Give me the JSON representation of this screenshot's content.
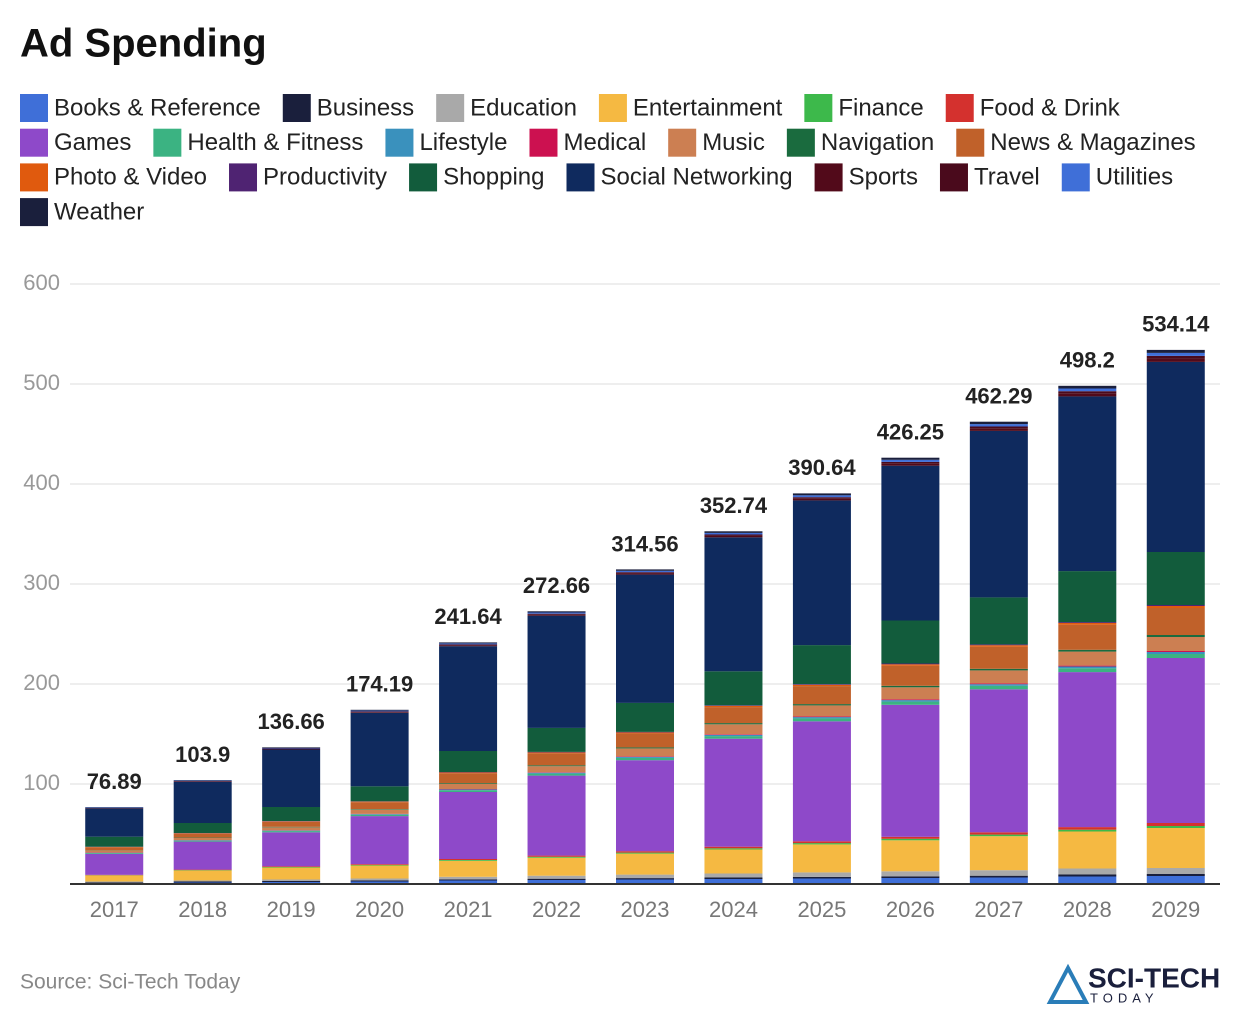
{
  "chart_data": {
    "type": "stacked_bar",
    "title": "Ad Spending",
    "categories": [
      "2017",
      "2018",
      "2019",
      "2020",
      "2021",
      "2022",
      "2023",
      "2024",
      "2025",
      "2026",
      "2027",
      "2028",
      "2029"
    ],
    "series": [
      {
        "name": "Books & Reference",
        "color": "#3f6fd8",
        "values": [
          1,
          1.5,
          2,
          2.5,
          3.5,
          4,
          4.5,
          5,
          5.5,
          6,
          6.5,
          7.5,
          8
        ]
      },
      {
        "name": "Business",
        "color": "#1a1f3c",
        "values": [
          0.5,
          1,
          1,
          1,
          1.2,
          1.3,
          1.4,
          1.5,
          1.6,
          1.7,
          1.8,
          2,
          2
        ]
      },
      {
        "name": "Education",
        "color": "#a9a9a9",
        "values": [
          1,
          1,
          1.5,
          2,
          2.5,
          3,
          3.5,
          4,
          4.5,
          5,
          5.5,
          6,
          6
        ]
      },
      {
        "name": "Entertainment",
        "color": "#f5b942",
        "values": [
          6,
          10,
          12,
          13,
          16,
          18,
          21,
          24,
          28,
          31,
          34,
          37,
          40
        ]
      },
      {
        "name": "Finance",
        "color": "#3db94b",
        "values": [
          0.3,
          0.4,
          0.5,
          0.6,
          0.8,
          0.9,
          1,
          1.2,
          1.3,
          1.5,
          1.6,
          1.8,
          2
        ]
      },
      {
        "name": "Food & Drink",
        "color": "#d4312e",
        "values": [
          0.4,
          0.5,
          0.7,
          0.8,
          1,
          1.2,
          1.4,
          1.6,
          1.8,
          2,
          2.3,
          2.6,
          3
        ]
      },
      {
        "name": "Games",
        "color": "#8e49c9",
        "values": [
          21,
          28,
          34,
          48,
          67,
          80,
          91,
          108,
          120,
          132,
          143,
          155,
          165
        ]
      },
      {
        "name": "Health & Fitness",
        "color": "#3bb382",
        "values": [
          0.8,
          1,
          1.2,
          1.4,
          1.8,
          2,
          2.3,
          2.6,
          2.9,
          3.2,
          3.5,
          3.8,
          4
        ]
      },
      {
        "name": "Lifestyle",
        "color": "#3a91bd",
        "values": [
          0.3,
          0.4,
          0.5,
          0.6,
          0.8,
          0.9,
          1,
          1.2,
          1.3,
          1.5,
          1.6,
          1.8,
          2
        ]
      },
      {
        "name": "Medical",
        "color": "#cc1150",
        "values": [
          0.2,
          0.2,
          0.3,
          0.3,
          0.4,
          0.5,
          0.5,
          0.6,
          0.7,
          0.8,
          0.8,
          0.9,
          1
        ]
      },
      {
        "name": "Music",
        "color": "#cc7f52",
        "values": [
          2,
          2,
          3,
          4,
          5,
          6,
          8,
          10,
          11,
          12,
          13,
          14,
          14
        ]
      },
      {
        "name": "Navigation",
        "color": "#1a6b3e",
        "values": [
          0.3,
          0.4,
          0.5,
          0.6,
          0.8,
          0.9,
          1,
          1.2,
          1.3,
          1.5,
          1.6,
          1.8,
          2
        ]
      },
      {
        "name": "News & Magazines",
        "color": "#c0612a",
        "values": [
          3,
          4,
          5,
          7,
          10,
          12,
          14,
          16,
          18,
          20,
          22,
          25,
          27
        ]
      },
      {
        "name": "Photo & Video",
        "color": "#e05a0e",
        "values": [
          0.3,
          0.4,
          0.5,
          0.6,
          0.8,
          0.9,
          1,
          1.2,
          1.3,
          1.5,
          1.6,
          1.8,
          2
        ]
      },
      {
        "name": "Productivity",
        "color": "#4f2372",
        "values": [
          0.2,
          0.2,
          0.3,
          0.3,
          0.4,
          0.5,
          0.5,
          0.6,
          0.7,
          0.8,
          0.8,
          0.9,
          1
        ]
      },
      {
        "name": "Shopping",
        "color": "#125c3c",
        "values": [
          10,
          10,
          14,
          15,
          21,
          24,
          29,
          34,
          39,
          43,
          47,
          51,
          53
        ]
      },
      {
        "name": "Social Networking",
        "color": "#0f2a5e",
        "values": [
          28.2,
          41.1,
          57.5,
          73.5,
          104.8,
          112.2,
          128.3,
          134,
          144.7,
          154.8,
          166.5,
          174.7,
          190.1
        ]
      },
      {
        "name": "Sports",
        "color": "#520a1a",
        "values": [
          0.3,
          0.4,
          0.5,
          0.7,
          0.9,
          1,
          1.2,
          1.4,
          1.6,
          1.9,
          2.2,
          2.6,
          3
        ]
      },
      {
        "name": "Travel",
        "color": "#4a0a1c",
        "values": [
          0.3,
          0.4,
          0.5,
          0.7,
          0.9,
          1,
          1.2,
          1.4,
          1.6,
          1.9,
          2.2,
          2.6,
          3
        ]
      },
      {
        "name": "Utilities",
        "color": "#3f6fd8",
        "values": [
          0.4,
          0.5,
          0.6,
          0.8,
          1,
          1.2,
          1.4,
          1.6,
          1.9,
          2.1,
          2.4,
          2.7,
          3
        ]
      },
      {
        "name": "Weather",
        "color": "#1a1f3c",
        "values": [
          0.4,
          0.5,
          0.6,
          0.8,
          1,
          1.2,
          1.4,
          1.6,
          1.9,
          2.1,
          2.4,
          2.7,
          3
        ]
      }
    ],
    "totals": [
      76.89,
      103.9,
      136.66,
      174.19,
      241.64,
      272.66,
      314.56,
      352.74,
      390.64,
      426.25,
      462.29,
      498.2,
      534.14
    ],
    "ylim": [
      0,
      600
    ],
    "yticks": [
      100,
      200,
      300,
      400,
      500,
      600
    ],
    "grid": true,
    "source": "Source: Sci-Tech Today",
    "logo": {
      "name": "SCI-TECH",
      "tagline": "TODAY"
    }
  }
}
